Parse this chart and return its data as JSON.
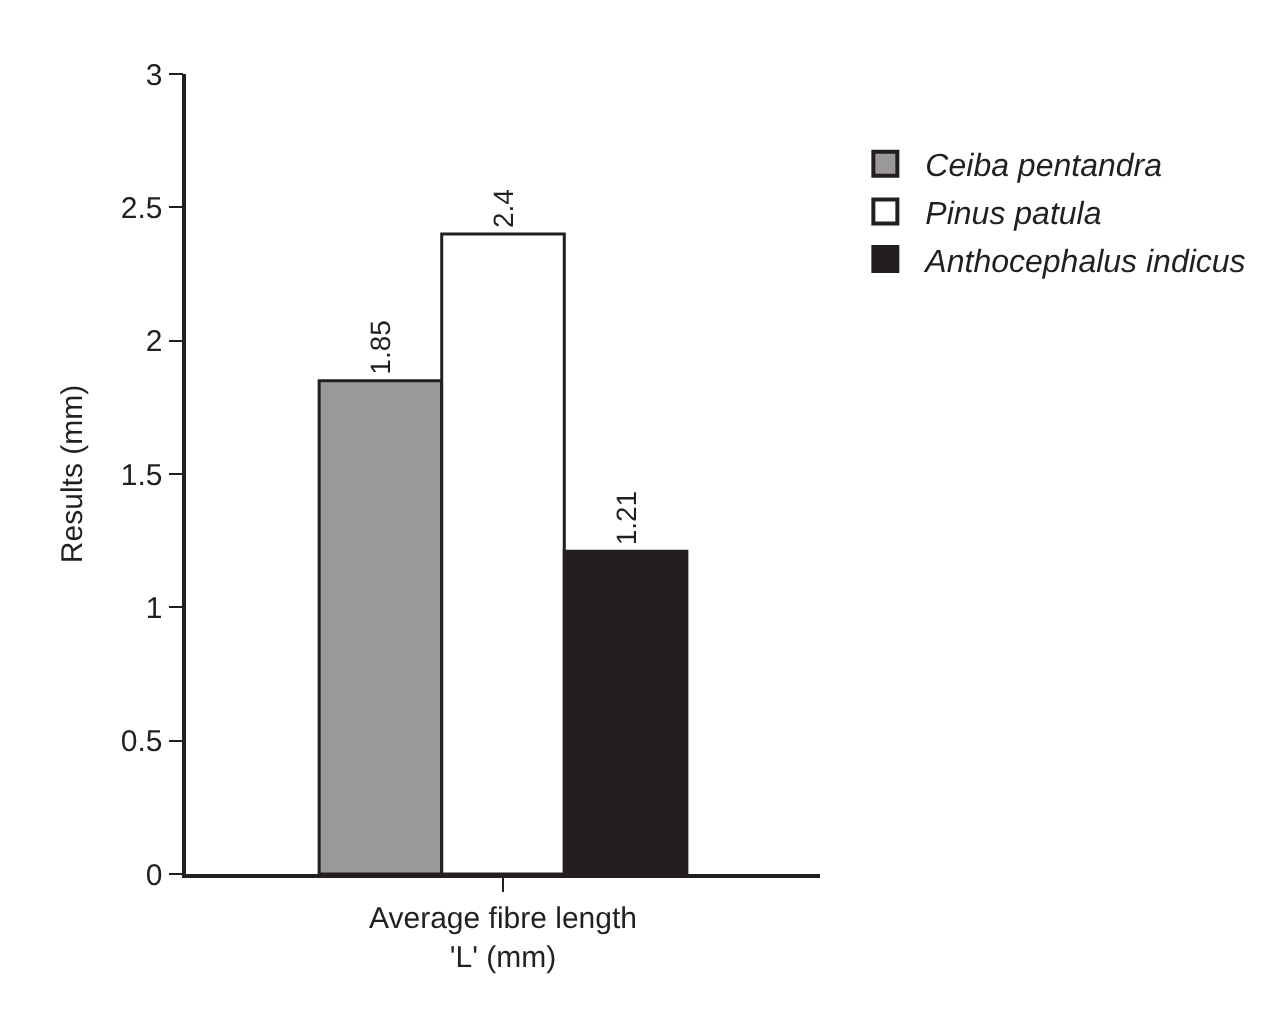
{
  "chart_data": {
    "type": "bar",
    "ylabel": "Results (mm)",
    "categories": [
      "Average fibre length\n'L' (mm)"
    ],
    "series": [
      {
        "name": "Ceiba pentandra",
        "color": "#9a9899",
        "values": [
          1.85
        ]
      },
      {
        "name": "Pinus patula",
        "color": "#ffffff",
        "values": [
          2.4
        ]
      },
      {
        "name": "Anthocephalus indicus",
        "color": "#231f20",
        "values": [
          1.21
        ]
      }
    ],
    "ylim": [
      0,
      3
    ],
    "yticks": [
      0,
      0.5,
      1,
      1.5,
      2,
      2.5,
      3
    ],
    "data_labels": true,
    "legend": "top right"
  }
}
